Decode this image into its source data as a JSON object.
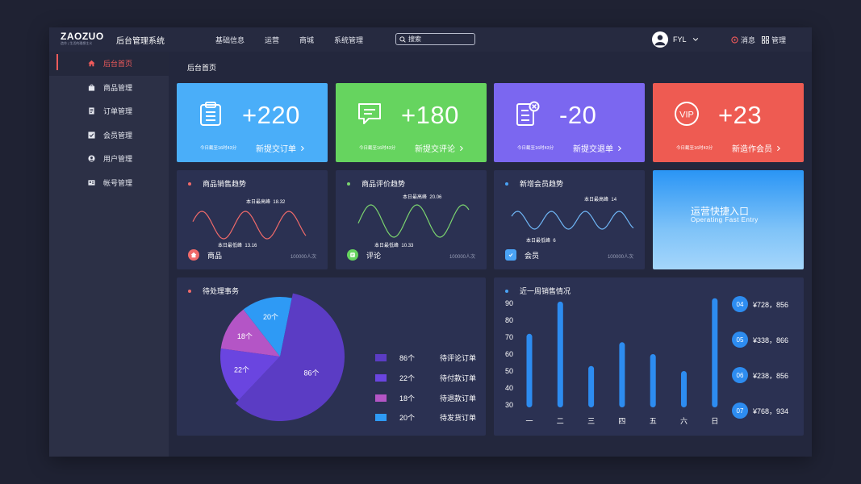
{
  "brand": {
    "logo": "ZAOZUO",
    "logo_sub": "造作 | 生活的理想主义",
    "title": "后台管理系统"
  },
  "nav": [
    "基础信息",
    "运营",
    "商城",
    "系统管理"
  ],
  "search": {
    "placeholder": "搜索"
  },
  "user": {
    "name": "FYL"
  },
  "top_actions": {
    "messages": "消息",
    "manage": "管理"
  },
  "sidebar": {
    "items": [
      {
        "label": "后台首页",
        "icon": "home-icon",
        "active": true
      },
      {
        "label": "商品管理",
        "icon": "bag-icon"
      },
      {
        "label": "订单管理",
        "icon": "order-icon"
      },
      {
        "label": "会员管理",
        "icon": "member-icon"
      },
      {
        "label": "用户管理",
        "icon": "user-icon"
      },
      {
        "label": "帐号管理",
        "icon": "account-icon"
      }
    ]
  },
  "breadcrumb": "后台首页",
  "stats": [
    {
      "value": "+220",
      "time": "今日截至16时43分",
      "action": "新提交订单",
      "color": "#4aaef9",
      "icon": "clipboard-icon"
    },
    {
      "value": "+180",
      "time": "今日截至16时43分",
      "action": "新提交评论",
      "color": "#66d45f",
      "icon": "comment-icon"
    },
    {
      "value": "-20",
      "time": "今日截至16时43分",
      "action": "新提交退单",
      "color": "#7b67f0",
      "icon": "refund-icon"
    },
    {
      "value": "+23",
      "time": "今日截至16时43分",
      "action": "新造作会员",
      "color": "#ee5b52",
      "icon": "vip-icon"
    }
  ],
  "trends": [
    {
      "title": "商品销售趋势",
      "peak_label": "本日最高峰",
      "peak_value": "18.32",
      "low_label": "本日最低峰",
      "low_value": "13.16",
      "foot": "商品",
      "count": "100000人次",
      "color": "#f06a6a",
      "dot": "#f06a6a"
    },
    {
      "title": "商品评价趋势",
      "peak_label": "本日最高峰",
      "peak_value": "20.06",
      "low_label": "本日最低峰",
      "low_value": "10.33",
      "foot": "评论",
      "count": "100000人次",
      "color": "#7bd46f",
      "dot": "#7bd46f"
    },
    {
      "title": "新增会员趋势",
      "peak_label": "本日最高峰",
      "peak_value": "14",
      "low_label": "本日最低峰",
      "low_value": "6",
      "foot": "会员",
      "count": "100000人次",
      "color": "#6fb6f6",
      "dot": "#4aa3f5"
    }
  ],
  "quick": {
    "title": "运营快捷入口",
    "subtitle": "Operating  Fast  Entry"
  },
  "pending": {
    "title": "待处理事务",
    "items": [
      {
        "count": "86个",
        "label": "待评论订单",
        "value": 86,
        "color": "#5b3cc4"
      },
      {
        "count": "22个",
        "label": "待付款订单",
        "value": 22,
        "color": "#6a45e0"
      },
      {
        "count": "18个",
        "label": "待退款订单",
        "value": 18,
        "color": "#b455c6"
      },
      {
        "count": "20个",
        "label": "待发货订单",
        "value": 20,
        "color": "#2e9af5"
      }
    ]
  },
  "weekly": {
    "title": "近一周销售情况",
    "sales": [
      {
        "badge": "04",
        "amount": "¥728，856"
      },
      {
        "badge": "05",
        "amount": "¥338，866"
      },
      {
        "badge": "06",
        "amount": "¥238，856"
      },
      {
        "badge": "07",
        "amount": "¥768，934"
      }
    ]
  },
  "chart_data": {
    "type": "bar",
    "title": "近一周销售情况",
    "categories": [
      "一",
      "二",
      "三",
      "四",
      "五",
      "六",
      "日"
    ],
    "values": [
      72,
      91,
      53,
      67,
      60,
      50,
      93
    ],
    "ylim": [
      30,
      90
    ],
    "yticks": [
      30,
      40,
      50,
      60,
      70,
      80,
      90
    ],
    "color": "#2d8cf0",
    "grid": false
  }
}
